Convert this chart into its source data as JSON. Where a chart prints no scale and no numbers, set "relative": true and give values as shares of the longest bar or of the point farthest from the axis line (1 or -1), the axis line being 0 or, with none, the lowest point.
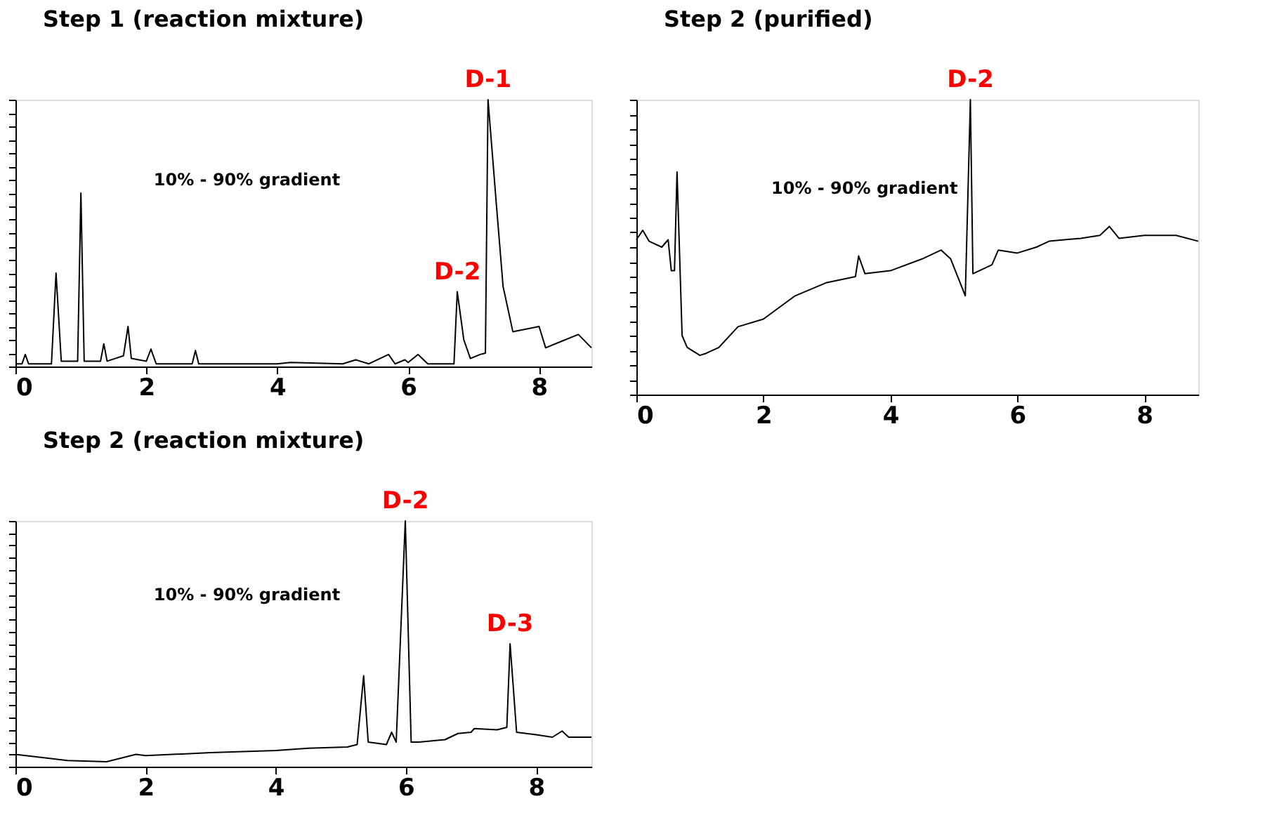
{
  "chart_data": [
    {
      "type": "line",
      "title": "Step 1 (reaction mixture)",
      "relative": true,
      "xlim": [
        0,
        8.8
      ],
      "xticks": [
        0,
        2,
        4,
        6,
        8
      ],
      "tick_labels": "x",
      "marker": "none",
      "line_style": "solid",
      "annotations": [
        "10% - 90% gradient",
        {
          "text": "D-1",
          "x": 7.22,
          "y": 1.0
        },
        {
          "text": "D-2",
          "x": 6.75,
          "y": 0.28
        }
      ],
      "series": [
        {
          "color": "#000000",
          "x": [
            0,
            0.1,
            0.15,
            0.2,
            0.55,
            0.62,
            0.7,
            0.95,
            1.0,
            1.05,
            1.3,
            1.35,
            1.4,
            1.65,
            1.72,
            1.77,
            2.0,
            2.07,
            2.15,
            2.7,
            2.75,
            2.8,
            4.0,
            4.2,
            5.0,
            5.2,
            5.4,
            5.7,
            5.8,
            5.95,
            6.0,
            6.15,
            6.3,
            6.7,
            6.75,
            6.85,
            6.95,
            7.1,
            7.18,
            7.22,
            7.35,
            7.45,
            7.6,
            7.8,
            8.0,
            8.1,
            8.3,
            8.6,
            8.8
          ],
          "values": [
            0.01,
            0.01,
            0.045,
            0.01,
            0.01,
            0.35,
            0.02,
            0.02,
            0.65,
            0.02,
            0.02,
            0.085,
            0.02,
            0.04,
            0.15,
            0.03,
            0.02,
            0.065,
            0.01,
            0.01,
            0.06,
            0.01,
            0.01,
            0.015,
            0.01,
            0.025,
            0.01,
            0.045,
            0.01,
            0.025,
            0.015,
            0.045,
            0.01,
            0.01,
            0.28,
            0.1,
            0.03,
            0.045,
            0.05,
            1.0,
            0.6,
            0.3,
            0.13,
            0.14,
            0.15,
            0.07,
            0.09,
            0.12,
            0.07
          ]
        }
      ]
    },
    {
      "type": "line",
      "title": "Step 2 (reaction mixture)",
      "relative": true,
      "xlim": [
        0,
        8.85
      ],
      "xticks": [
        0,
        2,
        4,
        6,
        8
      ],
      "tick_labels": "x",
      "marker": "none",
      "line_style": "solid",
      "annotations": [
        "10% - 90% gradient",
        {
          "text": "D-2",
          "x": 5.99,
          "y": 1.0
        },
        {
          "text": "D-3",
          "x": 7.6,
          "y": 0.5
        }
      ],
      "series": [
        {
          "color": "#000000",
          "x": [
            0,
            0.8,
            1.4,
            1.85,
            2.0,
            3.0,
            4.0,
            4.5,
            5.1,
            5.25,
            5.35,
            5.42,
            5.7,
            5.78,
            5.85,
            5.99,
            6.08,
            6.2,
            6.6,
            6.8,
            7.0,
            7.05,
            7.4,
            7.55,
            7.6,
            7.7,
            8.0,
            8.25,
            8.4,
            8.5,
            8.85
          ],
          "values": [
            0.05,
            0.025,
            0.02,
            0.05,
            0.045,
            0.057,
            0.066,
            0.075,
            0.08,
            0.09,
            0.37,
            0.1,
            0.09,
            0.14,
            0.1,
            1.0,
            0.1,
            0.1,
            0.11,
            0.135,
            0.14,
            0.155,
            0.15,
            0.16,
            0.5,
            0.14,
            0.13,
            0.12,
            0.145,
            0.12,
            0.12
          ]
        }
      ]
    },
    {
      "type": "line",
      "title": "Step 2 (purified)",
      "relative": true,
      "xlim": [
        0,
        8.85
      ],
      "xticks": [
        0,
        2,
        4,
        6,
        8
      ],
      "tick_labels": "x",
      "marker": "none",
      "line_style": "solid",
      "annotations": [
        "10% - 90% gradient",
        {
          "text": "D-2",
          "x": 5.26,
          "y": 1.0
        }
      ],
      "series": [
        {
          "color": "#000000",
          "x": [
            0,
            0.1,
            0.2,
            0.4,
            0.5,
            0.55,
            0.6,
            0.64,
            0.72,
            0.8,
            1.0,
            1.1,
            1.3,
            1.6,
            2.0,
            2.5,
            3.0,
            3.45,
            3.5,
            3.6,
            4.0,
            4.5,
            4.8,
            4.95,
            5.18,
            5.26,
            5.3,
            5.6,
            5.7,
            6.0,
            6.3,
            6.5,
            7.0,
            7.3,
            7.45,
            7.6,
            8.0,
            8.5,
            8.85
          ],
          "values": [
            0.525,
            0.557,
            0.52,
            0.5,
            0.525,
            0.42,
            0.42,
            0.755,
            0.2,
            0.16,
            0.133,
            0.14,
            0.16,
            0.23,
            0.256,
            0.335,
            0.38,
            0.4,
            0.47,
            0.41,
            0.42,
            0.46,
            0.49,
            0.46,
            0.335,
            1.0,
            0.41,
            0.44,
            0.49,
            0.48,
            0.5,
            0.52,
            0.53,
            0.54,
            0.57,
            0.53,
            0.54,
            0.54,
            0.52
          ]
        }
      ]
    }
  ]
}
